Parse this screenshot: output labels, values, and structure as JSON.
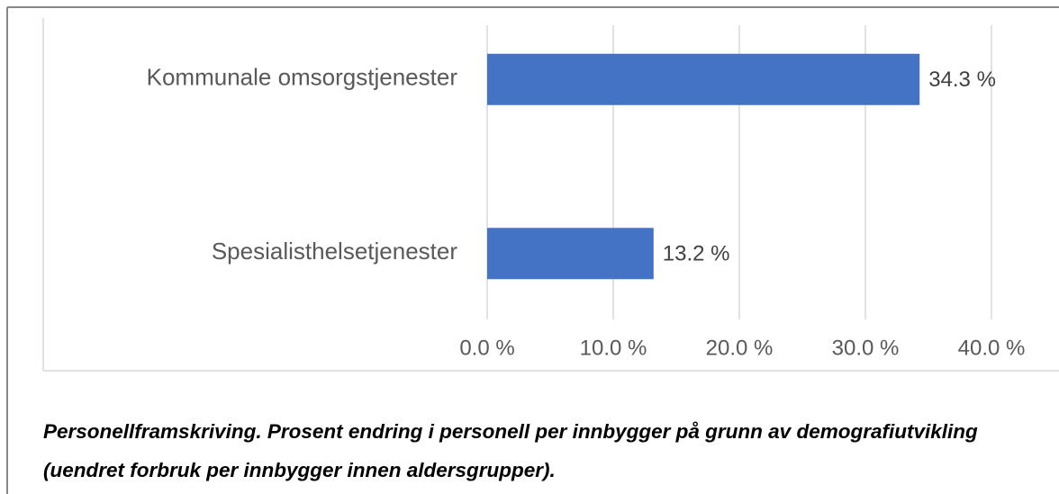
{
  "chart_data": {
    "type": "barh",
    "categories": [
      "Kommunale omsorgstjenester",
      "Spesialisthelsetjenester"
    ],
    "values": [
      34.3,
      13.2
    ],
    "value_labels": [
      "34.3 %",
      "13.2 %"
    ],
    "color": "#4472c4",
    "xlim": [
      0,
      40
    ],
    "xticks": [
      {
        "value": 0,
        "label": "0.0 %"
      },
      {
        "value": 10,
        "label": "10.0 %"
      },
      {
        "value": 20,
        "label": "20.0 %"
      },
      {
        "value": 30,
        "label": "30.0 %"
      },
      {
        "value": 40,
        "label": "40.0 %"
      }
    ],
    "grid": true,
    "caption": "Personellframskriving. Prosent endring i personell per innbygger på grunn av demografiutvikling (uendret forbruk per innbygger innen aldersgrupper)."
  }
}
